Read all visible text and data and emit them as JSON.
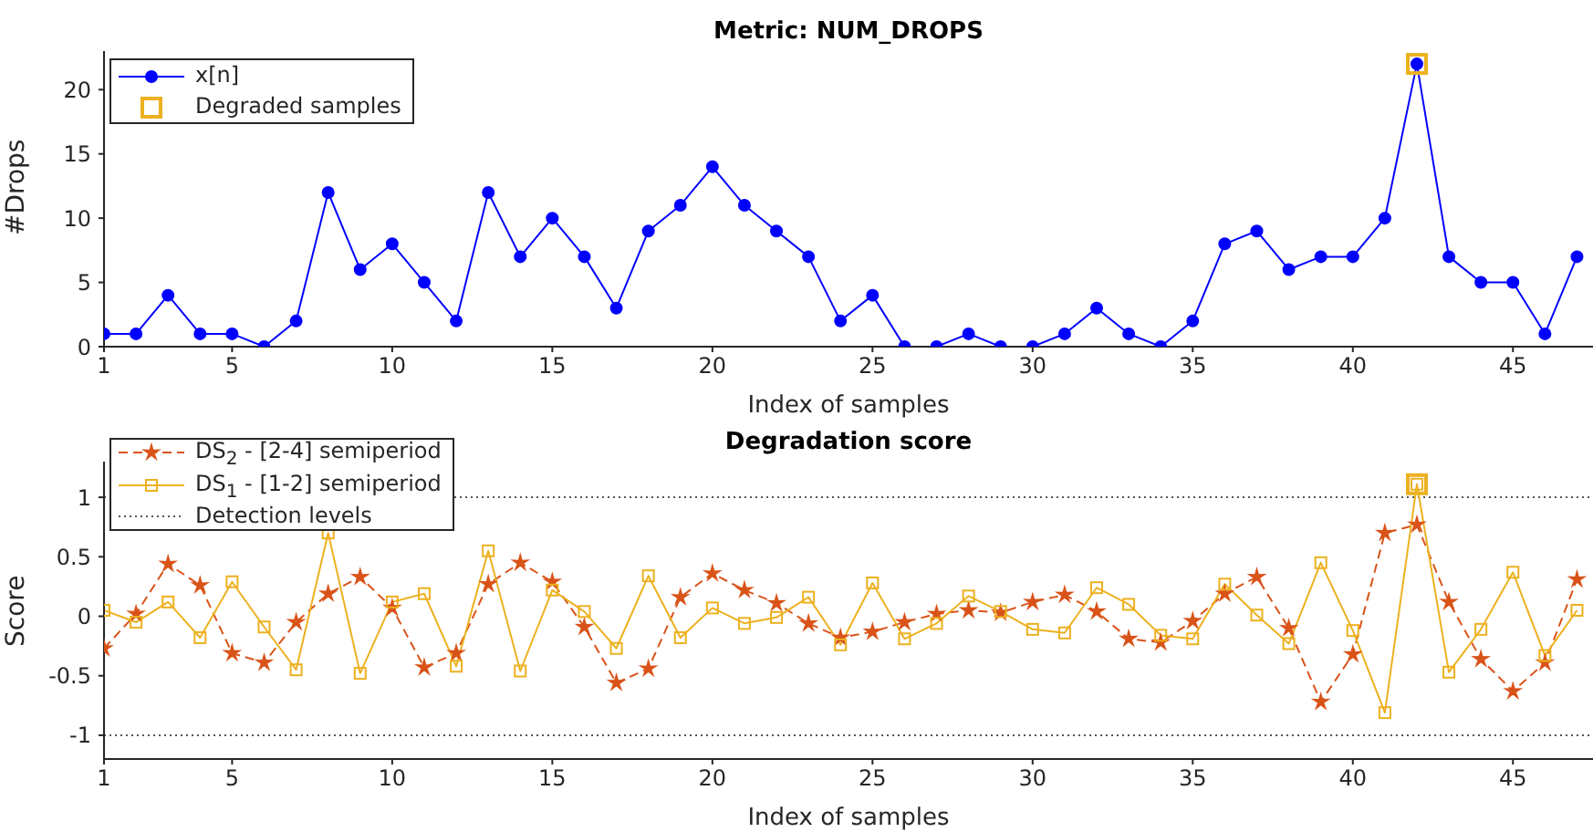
{
  "chart_data": [
    {
      "type": "line",
      "title": "Metric: NUM_DROPS",
      "xlabel": "Index of samples",
      "ylabel": "#Drops",
      "legend": "top left",
      "x": [
        1,
        2,
        3,
        4,
        5,
        6,
        7,
        8,
        9,
        10,
        11,
        12,
        13,
        14,
        15,
        16,
        17,
        18,
        19,
        20,
        21,
        22,
        23,
        24,
        25,
        26,
        27,
        28,
        29,
        30,
        31,
        32,
        33,
        34,
        35,
        36,
        37,
        38,
        39,
        40,
        41,
        42,
        43,
        44,
        45,
        46,
        47
      ],
      "xlim": [
        1,
        47.5
      ],
      "xticks": [
        1,
        5,
        10,
        15,
        20,
        25,
        30,
        35,
        40,
        45
      ],
      "ylim": [
        0,
        23
      ],
      "yticks": [
        0,
        5,
        10,
        15,
        20
      ],
      "series": [
        {
          "name": "x[n]",
          "color": "#0000ff",
          "marker": "circle",
          "line_style": "solid",
          "values": [
            1,
            1,
            4,
            1,
            1,
            0,
            2,
            12,
            6,
            8,
            5,
            2,
            12,
            7,
            10,
            7,
            3,
            9,
            11,
            14,
            11,
            9,
            7,
            2,
            4,
            0,
            0,
            1,
            0,
            0,
            1,
            3,
            1,
            0,
            2,
            8,
            9,
            6,
            7,
            7,
            10,
            22,
            7,
            5,
            5,
            1,
            7
          ]
        },
        {
          "name": "Degraded samples",
          "type": "scatter",
          "color": "#edb120",
          "marker": "square",
          "x": [
            42
          ],
          "values": [
            22
          ]
        }
      ]
    },
    {
      "type": "line",
      "title": "Degradation score",
      "xlabel": "Index of samples",
      "ylabel": "Score",
      "legend": "top left",
      "x": [
        1,
        2,
        3,
        4,
        5,
        6,
        7,
        8,
        9,
        10,
        11,
        12,
        13,
        14,
        15,
        16,
        17,
        18,
        19,
        20,
        21,
        22,
        23,
        24,
        25,
        26,
        27,
        28,
        29,
        30,
        31,
        32,
        33,
        34,
        35,
        36,
        37,
        38,
        39,
        40,
        41,
        42,
        43,
        44,
        45,
        46,
        47
      ],
      "xlim": [
        1,
        47.5
      ],
      "xticks": [
        1,
        5,
        10,
        15,
        20,
        25,
        30,
        35,
        40,
        45
      ],
      "ylim": [
        -1.2,
        1.3
      ],
      "yticks": [
        -1,
        -0.5,
        0,
        0.5,
        1
      ],
      "series": [
        {
          "name": "DS$_{2}$ - [2-4] semiperiod",
          "color": "#d95319",
          "marker": "star",
          "line_style": "dashed",
          "values": [
            -0.27,
            0.02,
            0.44,
            0.26,
            -0.31,
            -0.39,
            -0.05,
            0.19,
            0.33,
            0.07,
            -0.43,
            -0.31,
            0.27,
            0.45,
            0.29,
            -0.09,
            -0.56,
            -0.44,
            0.16,
            0.36,
            0.22,
            0.11,
            -0.06,
            -0.18,
            -0.13,
            -0.05,
            0.02,
            0.05,
            0.03,
            0.12,
            0.18,
            0.04,
            -0.19,
            -0.22,
            -0.04,
            0.19,
            0.33,
            -0.1,
            -0.72,
            -0.32,
            0.7,
            0.77,
            0.12,
            -0.36,
            -0.63,
            -0.39,
            0.31
          ]
        },
        {
          "name": "DS$_{1}$ - [1-2] semiperiod",
          "color": "#edb120",
          "marker": "square",
          "line_style": "solid",
          "values": [
            0.05,
            -0.05,
            0.12,
            -0.18,
            0.29,
            -0.09,
            -0.45,
            0.7,
            -0.48,
            0.12,
            0.19,
            -0.42,
            0.55,
            -0.46,
            0.22,
            0.04,
            -0.27,
            0.34,
            -0.18,
            0.07,
            -0.06,
            -0.01,
            0.16,
            -0.24,
            0.28,
            -0.19,
            -0.06,
            0.17,
            0.04,
            -0.11,
            -0.14,
            0.24,
            0.1,
            -0.16,
            -0.19,
            0.27,
            0.01,
            -0.23,
            0.45,
            -0.12,
            -0.81,
            1.11,
            -0.47,
            -0.11,
            0.37,
            -0.33,
            0.05
          ]
        },
        {
          "type": "scatter",
          "color": "#edb120",
          "marker": "square",
          "x": [
            42
          ],
          "values": [
            1.11
          ]
        }
      ],
      "ref_lines": [
        {
          "axis": "y",
          "value": 1,
          "label": "Detection levels",
          "color": "#555555",
          "line_style": "dotted"
        },
        {
          "axis": "y",
          "value": -1,
          "color": "#555555",
          "line_style": "dotted"
        }
      ]
    }
  ]
}
